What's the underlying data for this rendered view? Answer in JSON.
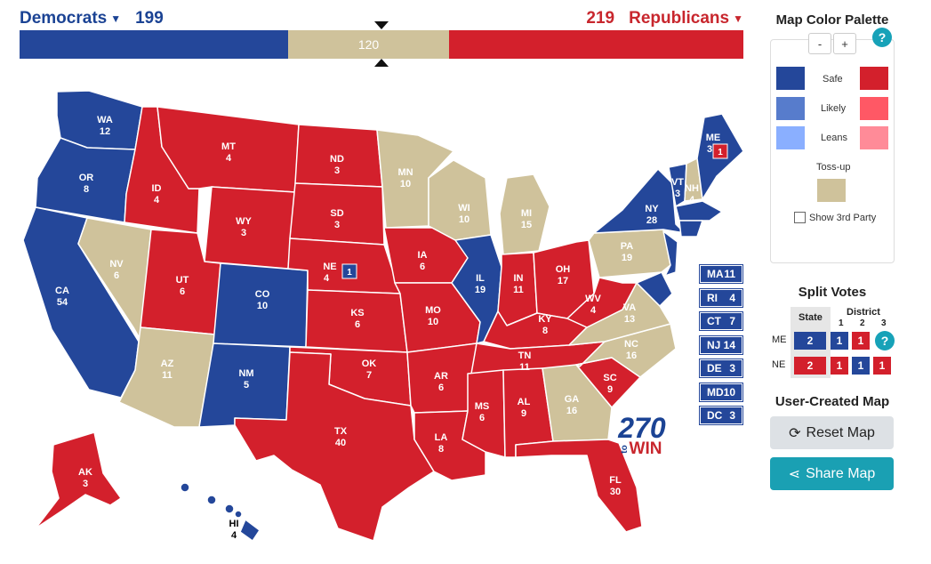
{
  "header": {
    "dem": {
      "label": "Democrats",
      "votes": "199"
    },
    "rep": {
      "label": "Republicans",
      "votes": "219"
    },
    "tossup": "120"
  },
  "colors": {
    "safe_dem": "#24479a",
    "likely_dem": "#577ccc",
    "leans_dem": "#8aafff",
    "safe_rep": "#d3202c",
    "likely_rep": "#ff5865",
    "leans_rep": "#ff8b98",
    "tossup": "#cfc29b"
  },
  "states": {
    "WA": "12",
    "OR": "8",
    "CA": "54",
    "NV": "6",
    "ID": "4",
    "MT": "4",
    "WY": "3",
    "UT": "6",
    "AZ": "11",
    "CO": "10",
    "NM": "5",
    "ND": "3",
    "SD": "3",
    "NE": "4",
    "KS": "6",
    "OK": "7",
    "TX": "40",
    "MN": "10",
    "IA": "6",
    "MO": "10",
    "AR": "6",
    "LA": "8",
    "WI": "10",
    "IL": "19",
    "MS": "6",
    "MI": "15",
    "IN": "11",
    "KY": "8",
    "TN": "11",
    "AL": "9",
    "OH": "17",
    "WV": "4",
    "GA": "16",
    "FL": "30",
    "SC": "9",
    "NC": "16",
    "VA": "13",
    "PA": "19",
    "NY": "28",
    "VT": "3",
    "NH": "4",
    "ME": "3",
    "AK": "3",
    "HI": "4"
  },
  "district_badges": {
    "NE": "1",
    "ME": "1"
  },
  "small_states": [
    {
      "abbr": "MA",
      "ev": "11"
    },
    {
      "abbr": "RI",
      "ev": "4"
    },
    {
      "abbr": "CT",
      "ev": "7"
    },
    {
      "abbr": "NJ",
      "ev": "14"
    },
    {
      "abbr": "DE",
      "ev": "3"
    },
    {
      "abbr": "MD",
      "ev": "10"
    },
    {
      "abbr": "DC",
      "ev": "3"
    }
  ],
  "logo": {
    "number": "270",
    "to": "to",
    "win": "WIN"
  },
  "palette": {
    "title": "Map Color Palette",
    "minus": "-",
    "plus": "+",
    "help": "?",
    "safe": "Safe",
    "likely": "Likely",
    "leans": "Leans",
    "tossup": "Toss-up",
    "show3rd": "Show 3rd Party"
  },
  "split": {
    "title": "Split Votes",
    "state_header": "State",
    "district_header": "District",
    "districts": [
      "1",
      "2",
      "3"
    ],
    "rows": [
      {
        "state": "ME",
        "state_votes": "2",
        "d": [
          "1",
          "1"
        ]
      },
      {
        "state": "NE",
        "state_votes": "2",
        "d": [
          "1",
          "1",
          "1"
        ]
      }
    ]
  },
  "user_map": {
    "title": "User-Created Map",
    "reset": "Reset Map",
    "share": "Share Map"
  }
}
